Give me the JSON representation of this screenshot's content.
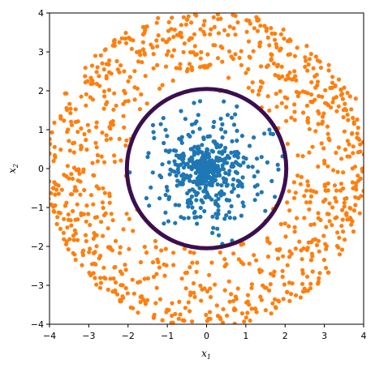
{
  "chart_data": {
    "type": "scatter",
    "title": "",
    "xlabel_main": "x",
    "xlabel_sub": "1",
    "ylabel_main": "x",
    "ylabel_sub": "2",
    "xlim": [
      -4,
      4
    ],
    "ylim": [
      -4,
      4
    ],
    "xticks": [
      -4,
      -3,
      -2,
      -1,
      0,
      1,
      2,
      3,
      4
    ],
    "yticks": [
      -4,
      -3,
      -2,
      -1,
      0,
      1,
      2,
      3,
      4
    ],
    "xtick_labels": [
      "−4",
      "−3",
      "−2",
      "−1",
      "0",
      "1",
      "2",
      "3",
      "4"
    ],
    "ytick_labels": [
      "−4",
      "−3",
      "−2",
      "−1",
      "0",
      "1",
      "2",
      "3",
      "4"
    ],
    "grid": false,
    "legend": "none",
    "colors": {
      "inner": "#1f77b4",
      "outer": "#ff7f0e",
      "boundary": "#3b0f4f"
    },
    "series": [
      {
        "class": "inner",
        "distribution": "isotropic cluster centered at origin, radius up to ~2",
        "center": [
          0,
          0
        ],
        "radius_max": 2.0,
        "approx_count": 500,
        "sample_points": [
          [
            0,
            0
          ],
          [
            0.3,
            0.2
          ],
          [
            -0.4,
            0.5
          ],
          [
            1.2,
            0.8
          ],
          [
            -1.5,
            0.3
          ],
          [
            0.5,
            -1.2
          ],
          [
            -0.8,
            -1.4
          ],
          [
            1.6,
            1.0
          ],
          [
            -1.1,
            1.3
          ],
          [
            0.9,
            -0.4
          ]
        ]
      },
      {
        "class": "outer",
        "distribution": "ring around origin, radius ~2 to ~4",
        "center": [
          0,
          0
        ],
        "radius_min": 1.9,
        "radius_max": 4.1,
        "approx_count": 1000,
        "sample_points": [
          [
            3.0,
            0.2
          ],
          [
            -3.2,
            0.5
          ],
          [
            0.4,
            3.1
          ],
          [
            -0.3,
            -3.3
          ],
          [
            2.2,
            2.3
          ],
          [
            -2.4,
            -2.1
          ],
          [
            2.6,
            -1.9
          ],
          [
            -2.1,
            2.5
          ],
          [
            3.8,
            1.8
          ],
          [
            -3.9,
            -0.5
          ]
        ]
      }
    ],
    "boundary": {
      "shape": "circle",
      "center": [
        0,
        0
      ],
      "radius": 2.03
    }
  }
}
